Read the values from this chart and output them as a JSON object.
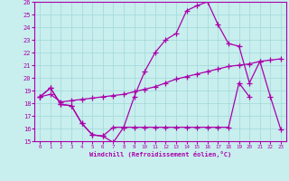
{
  "xlabel": "Windchill (Refroidissement éolien,°C)",
  "xlim": [
    -0.5,
    23.5
  ],
  "ylim": [
    15,
    26
  ],
  "yticks": [
    15,
    16,
    17,
    18,
    19,
    20,
    21,
    22,
    23,
    24,
    25,
    26
  ],
  "xticks": [
    0,
    1,
    2,
    3,
    4,
    5,
    6,
    7,
    8,
    9,
    10,
    11,
    12,
    13,
    14,
    15,
    16,
    17,
    18,
    19,
    20,
    21,
    22,
    23
  ],
  "bg_color": "#c8eeee",
  "grid_color": "#a0d8d8",
  "line_color": "#aa00aa",
  "line_top_x": [
    0,
    1,
    2,
    3,
    4,
    5,
    6,
    7,
    8,
    9,
    10,
    11,
    12,
    13,
    14,
    15,
    16,
    17,
    18,
    19,
    20,
    21,
    22,
    23
  ],
  "line_top_y": [
    18.5,
    19.2,
    17.9,
    17.8,
    16.4,
    15.5,
    15.4,
    14.9,
    16.1,
    18.5,
    20.5,
    22.0,
    23.0,
    23.5,
    25.3,
    25.7,
    26.0,
    24.2,
    22.7,
    22.5,
    19.6,
    21.3,
    18.5,
    15.9
  ],
  "line_mid_x": [
    0,
    1,
    2,
    3,
    4,
    5,
    6,
    7,
    8,
    9,
    10,
    11,
    12,
    13,
    14,
    15,
    16,
    17,
    18,
    19,
    20,
    21,
    22,
    23
  ],
  "line_mid_y": [
    18.5,
    18.7,
    18.1,
    18.2,
    18.3,
    18.4,
    18.5,
    18.6,
    18.7,
    18.9,
    19.1,
    19.3,
    19.6,
    19.9,
    20.1,
    20.3,
    20.5,
    20.7,
    20.9,
    21.0,
    21.1,
    21.3,
    21.4,
    21.5
  ],
  "line_bot_x": [
    0,
    1,
    2,
    3,
    4,
    5,
    6,
    7,
    8,
    9,
    10,
    11,
    12,
    13,
    14,
    15,
    16,
    17,
    18,
    19,
    20,
    21,
    22,
    23
  ],
  "line_bot_y": [
    18.5,
    19.2,
    17.9,
    17.8,
    16.4,
    15.5,
    15.4,
    16.1,
    16.1,
    16.1,
    16.1,
    16.1,
    16.1,
    16.1,
    16.1,
    16.1,
    16.1,
    16.1,
    16.1,
    19.6,
    18.5,
    null,
    null,
    null
  ]
}
